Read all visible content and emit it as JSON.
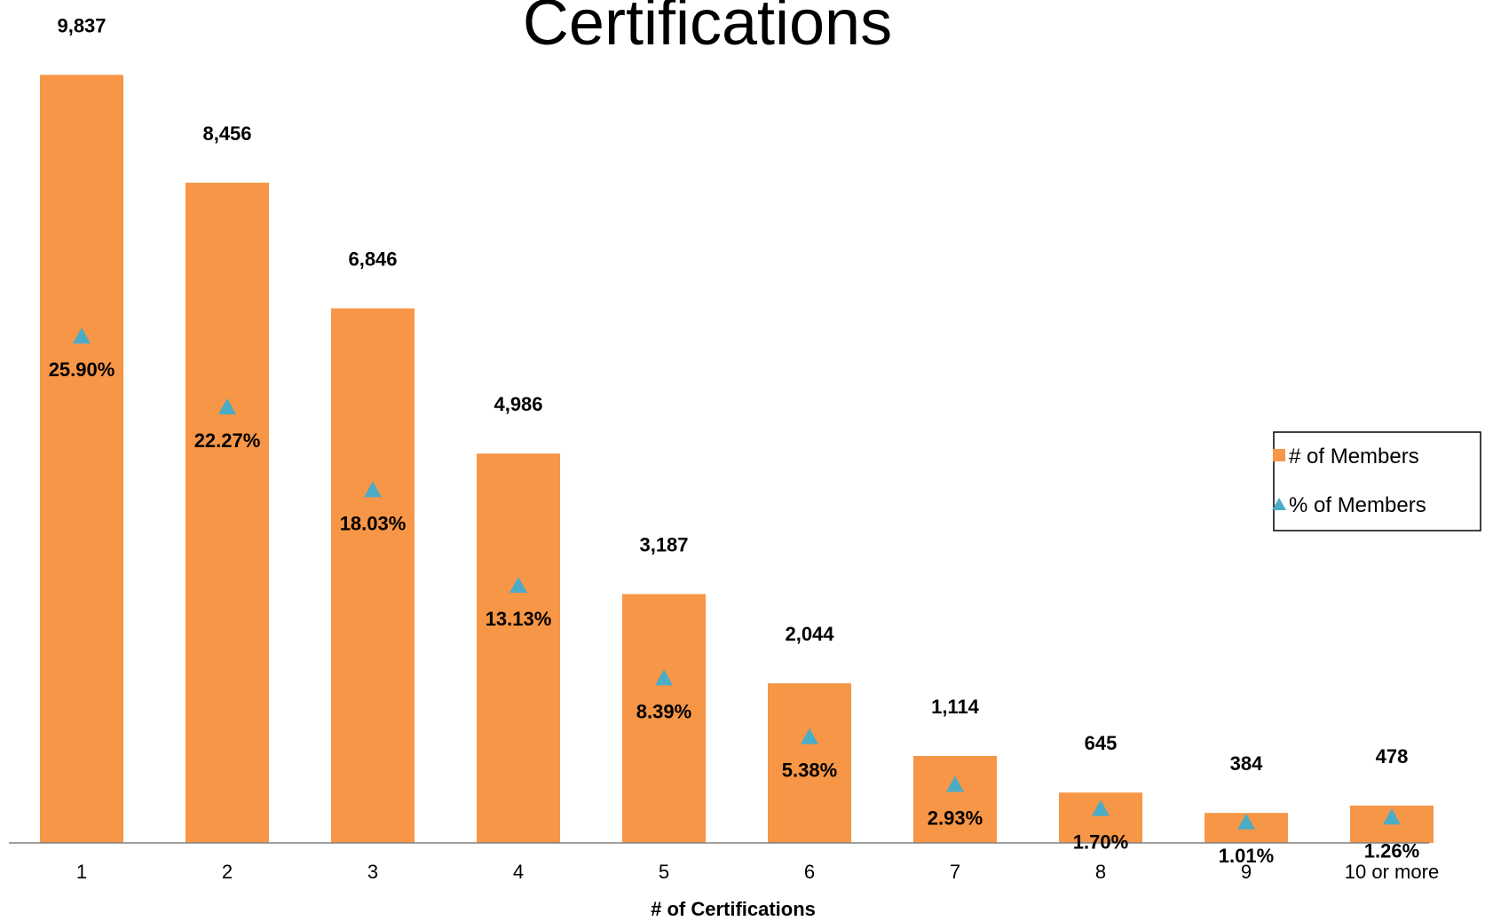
{
  "chart_data": {
    "type": "bar",
    "title": "Certifications",
    "xlabel": "# of Certifications",
    "ylabel": "",
    "categories": [
      "1",
      "2",
      "3",
      "4",
      "5",
      "6",
      "7",
      "8",
      "9",
      "10 or more"
    ],
    "series": [
      {
        "name": "# of Members",
        "type": "bar",
        "color": "#F79646",
        "values": [
          9837,
          8456,
          6846,
          4986,
          3187,
          2044,
          1114,
          645,
          384,
          478
        ],
        "labels": [
          "9,837",
          "8,456",
          "6,846",
          "4,986",
          "3,187",
          "2,044",
          "1,114",
          "645",
          "384",
          "478"
        ]
      },
      {
        "name": "% of Members",
        "type": "scatter",
        "marker": "triangle",
        "color": "#4BACC6",
        "values": [
          25.9,
          22.27,
          18.03,
          13.13,
          8.39,
          5.38,
          2.93,
          1.7,
          1.01,
          1.26
        ],
        "labels": [
          "25.90%",
          "22.27%",
          "18.03%",
          "13.13%",
          "8.39%",
          "5.38%",
          "2.93%",
          "1.70%",
          "1.01%",
          "1.26%"
        ]
      }
    ],
    "ylim": [
      0,
      10000
    ],
    "y2lim": [
      0,
      40
    ],
    "grid": false,
    "legend": "right"
  }
}
